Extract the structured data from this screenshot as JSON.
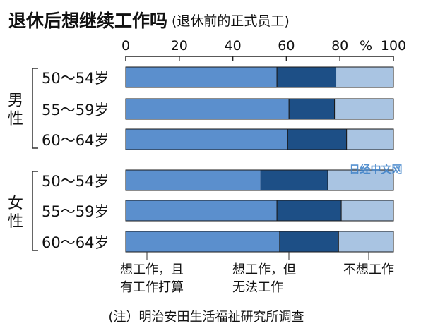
{
  "chart_data": {
    "type": "bar",
    "stacked": true,
    "orientation": "horizontal",
    "title": "退休后想继续工作吗",
    "subtitle": "(退休前的正式员工)",
    "unit": "%",
    "xlim": [
      0,
      100
    ],
    "ticks": [
      0,
      20,
      40,
      60,
      80,
      100
    ],
    "groups": [
      {
        "label": "男性",
        "categories": [
          "50～54岁",
          "55～59岁",
          "60～64岁"
        ]
      },
      {
        "label": "女性",
        "categories": [
          "50～54岁",
          "55～59岁",
          "60～64岁"
        ]
      }
    ],
    "categories": [
      "50～54岁",
      "55～59岁",
      "60～64岁",
      "50～54岁",
      "55～59岁",
      "60～64岁"
    ],
    "series": [
      {
        "name": "想工作，且有工作打算",
        "values": [
          56.5,
          61,
          60.5,
          50.5,
          56.5,
          57.5
        ]
      },
      {
        "name": "想工作，但无法工作",
        "values": [
          22,
          17,
          22,
          25,
          24,
          22
        ]
      },
      {
        "name": "不想工作",
        "values": [
          21.5,
          22,
          17.5,
          24.5,
          19.5,
          20.5
        ]
      }
    ],
    "colors": [
      "#5b8fcd",
      "#1d4f86",
      "#a9c4e2"
    ],
    "legend_lines": [
      [
        "想工作，且",
        "有工作打算"
      ],
      [
        "想工作，但",
        "无法工作"
      ],
      [
        "不想工作"
      ]
    ],
    "note": "(注）明治安田生活福祉研究所调查",
    "watermark": "日经中文网",
    "grid": false
  }
}
